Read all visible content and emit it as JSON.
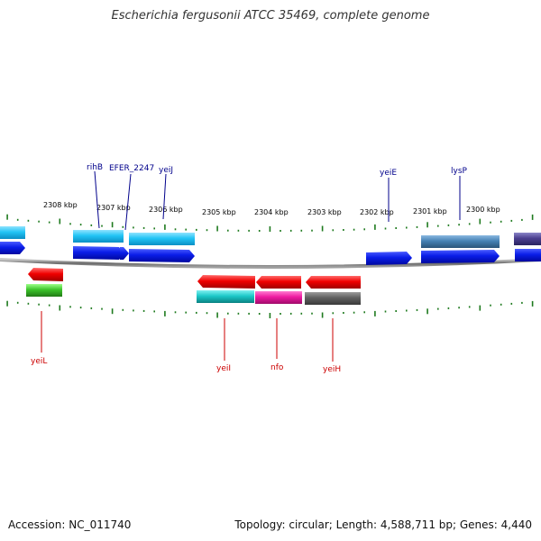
{
  "title": "Escherichia fergusonii ATCC 35469, complete genome",
  "footer": {
    "accession": "Accession: NC_011740",
    "stats": "Topology: circular; Length: 4,588,711 bp; Genes: 4,440"
  },
  "colors": {
    "backbone": "#7a7a7a",
    "tick": "#1e7a1e",
    "label_forward": "#00008b",
    "label_reverse": "#cc0000"
  },
  "ticks": [
    {
      "label": "2308 kbp"
    },
    {
      "label": "2307 kbp"
    },
    {
      "label": "2306 kbp"
    },
    {
      "label": "2305 kbp"
    },
    {
      "label": "2304 kbp"
    },
    {
      "label": "2303 kbp"
    },
    {
      "label": "2302 kbp"
    },
    {
      "label": "2301 kbp"
    },
    {
      "label": "2300 kbp"
    }
  ],
  "genes_forward": [
    {
      "name": "rihB"
    },
    {
      "name": "EFER_2247"
    },
    {
      "name": "yeiJ"
    },
    {
      "name": "yeiE"
    },
    {
      "name": "lysP"
    }
  ],
  "genes_reverse": [
    {
      "name": "yeiL"
    },
    {
      "name": "yeiI"
    },
    {
      "name": "nfo"
    },
    {
      "name": "yeiH"
    }
  ]
}
